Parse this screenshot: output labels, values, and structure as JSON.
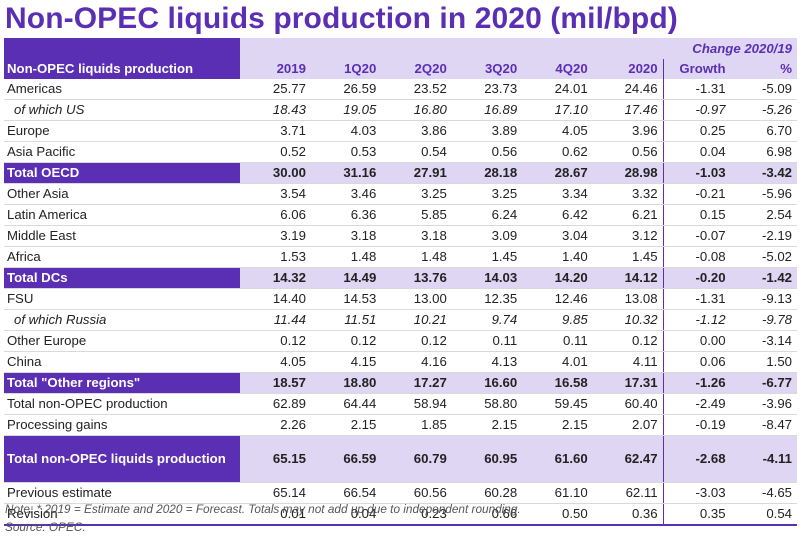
{
  "title": "Non-OPEC liquids production in 2020 (mil/bpd)",
  "header": {
    "change_label": "Change 2020/19",
    "row_label": "Non-OPEC liquids production",
    "columns": [
      "2019",
      "1Q20",
      "2Q20",
      "3Q20",
      "4Q20",
      "2020",
      "Growth",
      "%"
    ]
  },
  "rows": [
    {
      "label": "Americas",
      "values": [
        "25.77",
        "26.59",
        "23.52",
        "23.73",
        "24.01",
        "24.46",
        "-1.31",
        "-5.09"
      ]
    },
    {
      "label": "of which US",
      "values": [
        "18.43",
        "19.05",
        "16.80",
        "16.89",
        "17.10",
        "17.46",
        "-0.97",
        "-5.26"
      ]
    },
    {
      "label": "Europe",
      "values": [
        "3.71",
        "4.03",
        "3.86",
        "3.89",
        "4.05",
        "3.96",
        "0.25",
        "6.70"
      ]
    },
    {
      "label": "Asia Pacific",
      "values": [
        "0.52",
        "0.53",
        "0.54",
        "0.56",
        "0.62",
        "0.56",
        "0.04",
        "6.98"
      ]
    },
    {
      "label": "Total OECD",
      "values": [
        "30.00",
        "31.16",
        "27.91",
        "28.18",
        "28.67",
        "28.98",
        "-1.03",
        "-3.42"
      ]
    },
    {
      "label": "Other Asia",
      "values": [
        "3.54",
        "3.46",
        "3.25",
        "3.25",
        "3.34",
        "3.32",
        "-0.21",
        "-5.96"
      ]
    },
    {
      "label": "Latin America",
      "values": [
        "6.06",
        "6.36",
        "5.85",
        "6.24",
        "6.42",
        "6.21",
        "0.15",
        "2.54"
      ]
    },
    {
      "label": "Middle East",
      "values": [
        "3.19",
        "3.18",
        "3.18",
        "3.09",
        "3.04",
        "3.12",
        "-0.07",
        "-2.19"
      ]
    },
    {
      "label": "Africa",
      "values": [
        "1.53",
        "1.48",
        "1.48",
        "1.45",
        "1.40",
        "1.45",
        "-0.08",
        "-5.02"
      ]
    },
    {
      "label": "Total DCs",
      "values": [
        "14.32",
        "14.49",
        "13.76",
        "14.03",
        "14.20",
        "14.12",
        "-0.20",
        "-1.42"
      ]
    },
    {
      "label": "FSU",
      "values": [
        "14.40",
        "14.53",
        "13.00",
        "12.35",
        "12.46",
        "13.08",
        "-1.31",
        "-9.13"
      ]
    },
    {
      "label": "of which Russia",
      "values": [
        "11.44",
        "11.51",
        "10.21",
        "9.74",
        "9.85",
        "10.32",
        "-1.12",
        "-9.78"
      ]
    },
    {
      "label": "Other Europe",
      "values": [
        "0.12",
        "0.12",
        "0.12",
        "0.11",
        "0.11",
        "0.12",
        "0.00",
        "-3.14"
      ]
    },
    {
      "label": "China",
      "values": [
        "4.05",
        "4.15",
        "4.16",
        "4.13",
        "4.01",
        "4.11",
        "0.06",
        "1.50"
      ]
    },
    {
      "label": "Total \"Other regions\"",
      "values": [
        "18.57",
        "18.80",
        "17.27",
        "16.60",
        "16.58",
        "17.31",
        "-1.26",
        "-6.77"
      ]
    },
    {
      "label": "Total non-OPEC production",
      "values": [
        "62.89",
        "64.44",
        "58.94",
        "58.80",
        "59.45",
        "60.40",
        "-2.49",
        "-3.96"
      ]
    },
    {
      "label": "Processing gains",
      "values": [
        "2.26",
        "2.15",
        "1.85",
        "2.15",
        "2.15",
        "2.07",
        "-0.19",
        "-8.47"
      ]
    },
    {
      "label": "Total non-OPEC liquids production",
      "values": [
        "65.15",
        "66.59",
        "60.79",
        "60.95",
        "61.60",
        "62.47",
        "-2.68",
        "-4.11"
      ]
    },
    {
      "label": "Previous estimate",
      "values": [
        "65.14",
        "66.54",
        "60.56",
        "60.28",
        "61.10",
        "62.11",
        "-3.03",
        "-4.65"
      ]
    },
    {
      "label": "Revision",
      "values": [
        "0.01",
        "0.04",
        "0.23",
        "0.66",
        "0.50",
        "0.36",
        "0.35",
        "0.54"
      ]
    }
  ],
  "notes": {
    "note": "Note: * 2019 = Estimate and 2020 = Forecast. Totals may not add up due to independent rounding.",
    "source": "Source: OPEC."
  },
  "colors": {
    "accent": "#5b2fb4",
    "band": "#ded6f2"
  }
}
